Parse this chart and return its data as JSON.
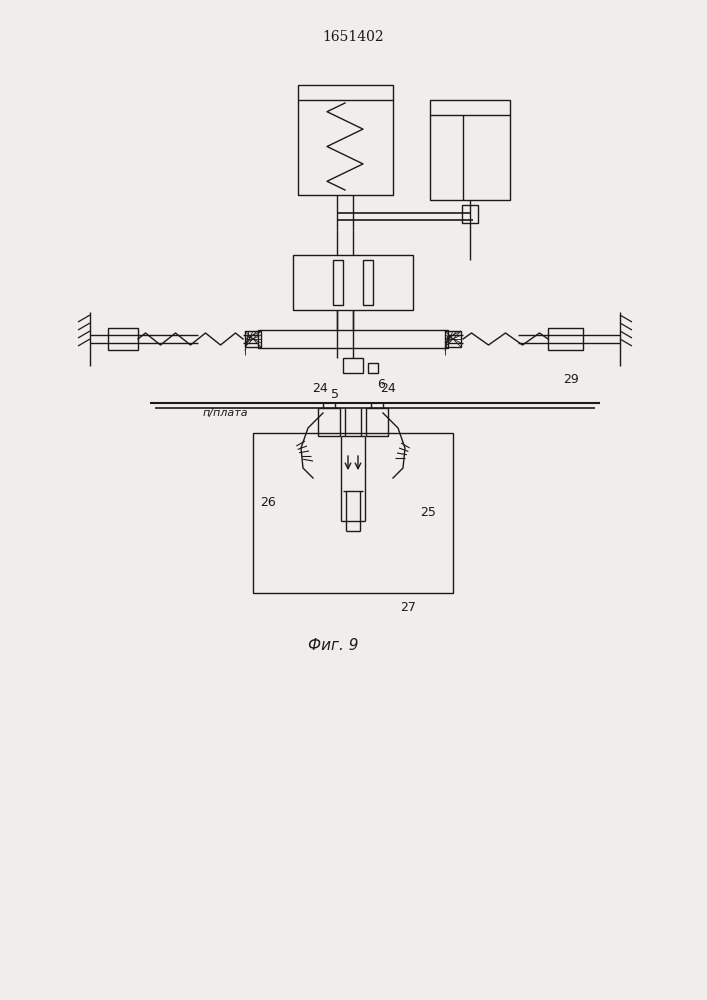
{
  "title": "1651402",
  "fig_label": "Фиг. 9",
  "bg": "#f0eeeb",
  "lc": "#1a1a1a",
  "lw": 1.0
}
